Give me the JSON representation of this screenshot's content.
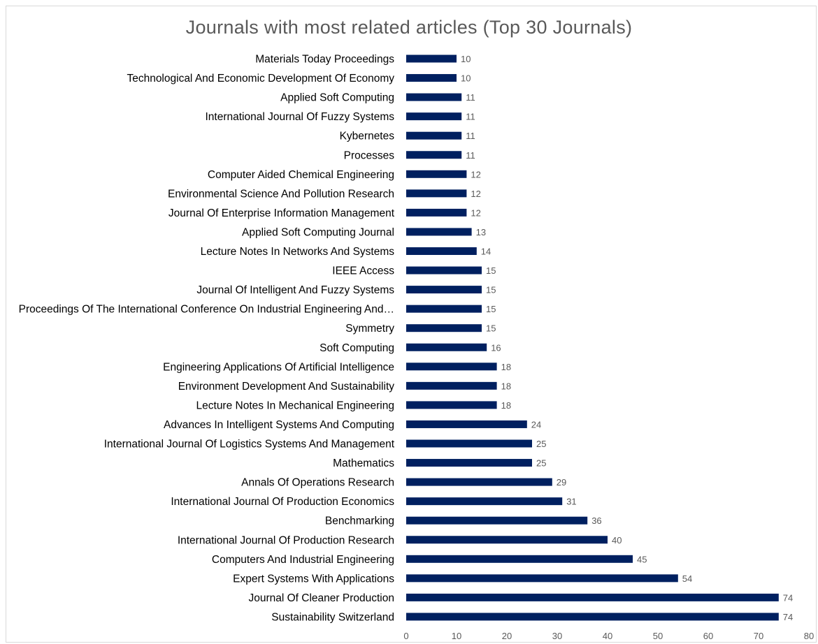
{
  "chart_data": {
    "type": "bar",
    "orientation": "horizontal",
    "title": "Journals with most related articles (Top 30 Journals)",
    "xlabel": "",
    "ylabel": "",
    "xlim": [
      0,
      80
    ],
    "x_ticks": [
      "0",
      "10",
      "20",
      "30",
      "40",
      "50",
      "60",
      "70",
      "80"
    ],
    "grid": false,
    "legend": "none",
    "bar_color": "#002060",
    "categories": [
      "Materials Today Proceedings",
      "Technological And Economic Development Of Economy",
      "Applied Soft Computing",
      "International Journal Of Fuzzy Systems",
      "Kybernetes",
      "Processes",
      "Computer Aided Chemical Engineering",
      "Environmental Science And Pollution Research",
      "Journal Of Enterprise Information Management",
      "Applied Soft Computing Journal",
      "Lecture Notes In Networks And Systems",
      "IEEE Access",
      "Journal Of Intelligent And Fuzzy Systems",
      "Proceedings Of The International Conference On Industrial Engineering And…",
      "Symmetry",
      "Soft Computing",
      "Engineering Applications Of Artificial Intelligence",
      "Environment Development And Sustainability",
      "Lecture Notes In Mechanical Engineering",
      "Advances In Intelligent Systems And Computing",
      "International Journal Of Logistics Systems And Management",
      "Mathematics",
      "Annals Of Operations Research",
      "International Journal Of Production Economics",
      "Benchmarking",
      "International Journal Of Production Research",
      "Computers And Industrial Engineering",
      "Expert Systems With Applications",
      "Journal Of Cleaner Production",
      "Sustainability Switzerland"
    ],
    "values": [
      10,
      10,
      11,
      11,
      11,
      11,
      12,
      12,
      12,
      13,
      14,
      15,
      15,
      15,
      15,
      16,
      18,
      18,
      18,
      24,
      25,
      25,
      29,
      31,
      36,
      40,
      45,
      54,
      74,
      74
    ]
  }
}
